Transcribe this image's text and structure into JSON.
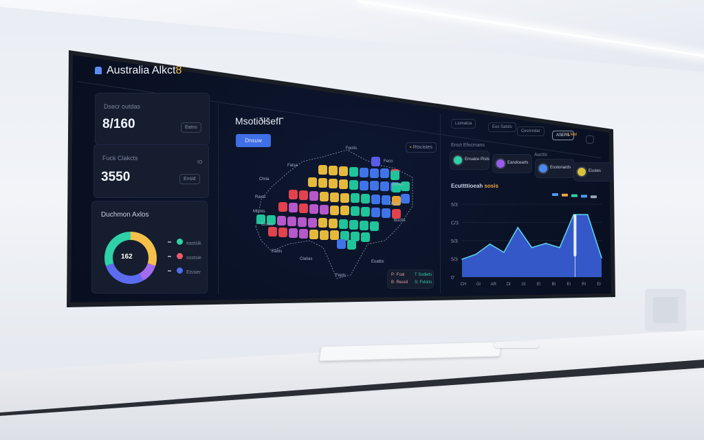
{
  "header": {
    "title": "Australia Alkct",
    "title_suffix": "8"
  },
  "stats": [
    {
      "label": "Dsecr outdas",
      "value": "8/160",
      "button": "Eatns"
    },
    {
      "label": "Fuck Clakcts",
      "value": "3550",
      "button": "Ensid",
      "corner": "IO"
    }
  ],
  "donut": {
    "title": "Duchmon Axlos",
    "center": "162",
    "segments": [
      {
        "color": "#f5c04a",
        "value": 30
      },
      {
        "color": "#a36bf0",
        "value": 12
      },
      {
        "color": "#5b6cf0",
        "value": 28
      },
      {
        "color": "#2fd1a8",
        "value": 30
      }
    ],
    "legend": [
      {
        "color": "#2fd1a8",
        "label": "eastsik"
      },
      {
        "color": "#ef5a6a",
        "label": "sostsie"
      },
      {
        "color": "#4f6ef0",
        "label": "Eissier"
      }
    ]
  },
  "map": {
    "title": "MsotiðłšefΓ",
    "button": "Dnsuw",
    "filter": "Rtscistes",
    "region_labels": [
      "Fatsa",
      "Fpctis",
      "Chrla",
      "Raxts",
      "Mtsnts",
      "Coxes",
      "Eabts",
      "Clatias",
      "Fepts",
      "Eoatbs",
      "Buchs",
      "Daets",
      "Eoses",
      "Feco"
    ],
    "tile_colors": {
      "Y": "#e5b93c",
      "T": "#20c49a",
      "B": "#3f74e8",
      "R": "#e2424d",
      "P": "#b658c9",
      "O": "#e6a22e",
      "V": "#5a5be6"
    },
    "tile_rows": [
      "YYYTBBBR",
      "YYYYTBBBB",
      "RRPYYYTTBBO",
      "RPRPPYYTTBBR",
      "TTPPPPYYTTTT",
      "RRPPYYYTTT",
      "BT"
    ],
    "legend": [
      "P· Foal",
      "T Sodiets",
      "B· Reusil",
      "S: Fvtorls"
    ]
  },
  "topbar": {
    "items": [
      "Lsimatoa",
      "Eos Satsts",
      "Cesmndar",
      "ASERL",
      "Lfeal"
    ],
    "colors": {
      "active": "#f0a53a"
    }
  },
  "kpis": {
    "section_label": "Ersct Efocmans",
    "section_label2": "Auctis",
    "items": [
      {
        "label": "Ensalce Pists",
        "color": "#2fd1a8"
      },
      {
        "label": "Eandcearts",
        "color": "#9a5cf0"
      },
      {
        "label": "Eostonards",
        "color": "#4a8af0"
      },
      {
        "label": "Esstes",
        "color": "#d8c23a"
      }
    ]
  },
  "chart_data": {
    "type": "area",
    "title": "Ecuttttioeah",
    "title_badge": "sosis",
    "legend_colors": [
      "#4a9cf0",
      "#f0a53a",
      "#2fd1a8",
      "#4a9cf0",
      "#9aa7c0"
    ],
    "yticks": [
      "0'",
      "5/3",
      "5/3",
      "C/3",
      "5/3"
    ],
    "ylim": [
      0,
      4
    ],
    "xticks": [
      "CH",
      "Gl",
      "AR",
      "Dl",
      "Gl",
      "El",
      "Bl",
      "El",
      "Rl",
      "El"
    ],
    "values": [
      0.98,
      1.25,
      1.81,
      1.36,
      2.72,
      1.62,
      1.85,
      1.62,
      3.43,
      3.43,
      1.06
    ],
    "colors": {
      "fill": "#3558c8",
      "line": "#5fd8f0",
      "highlight": "#e8eeff"
    },
    "grid": true
  }
}
